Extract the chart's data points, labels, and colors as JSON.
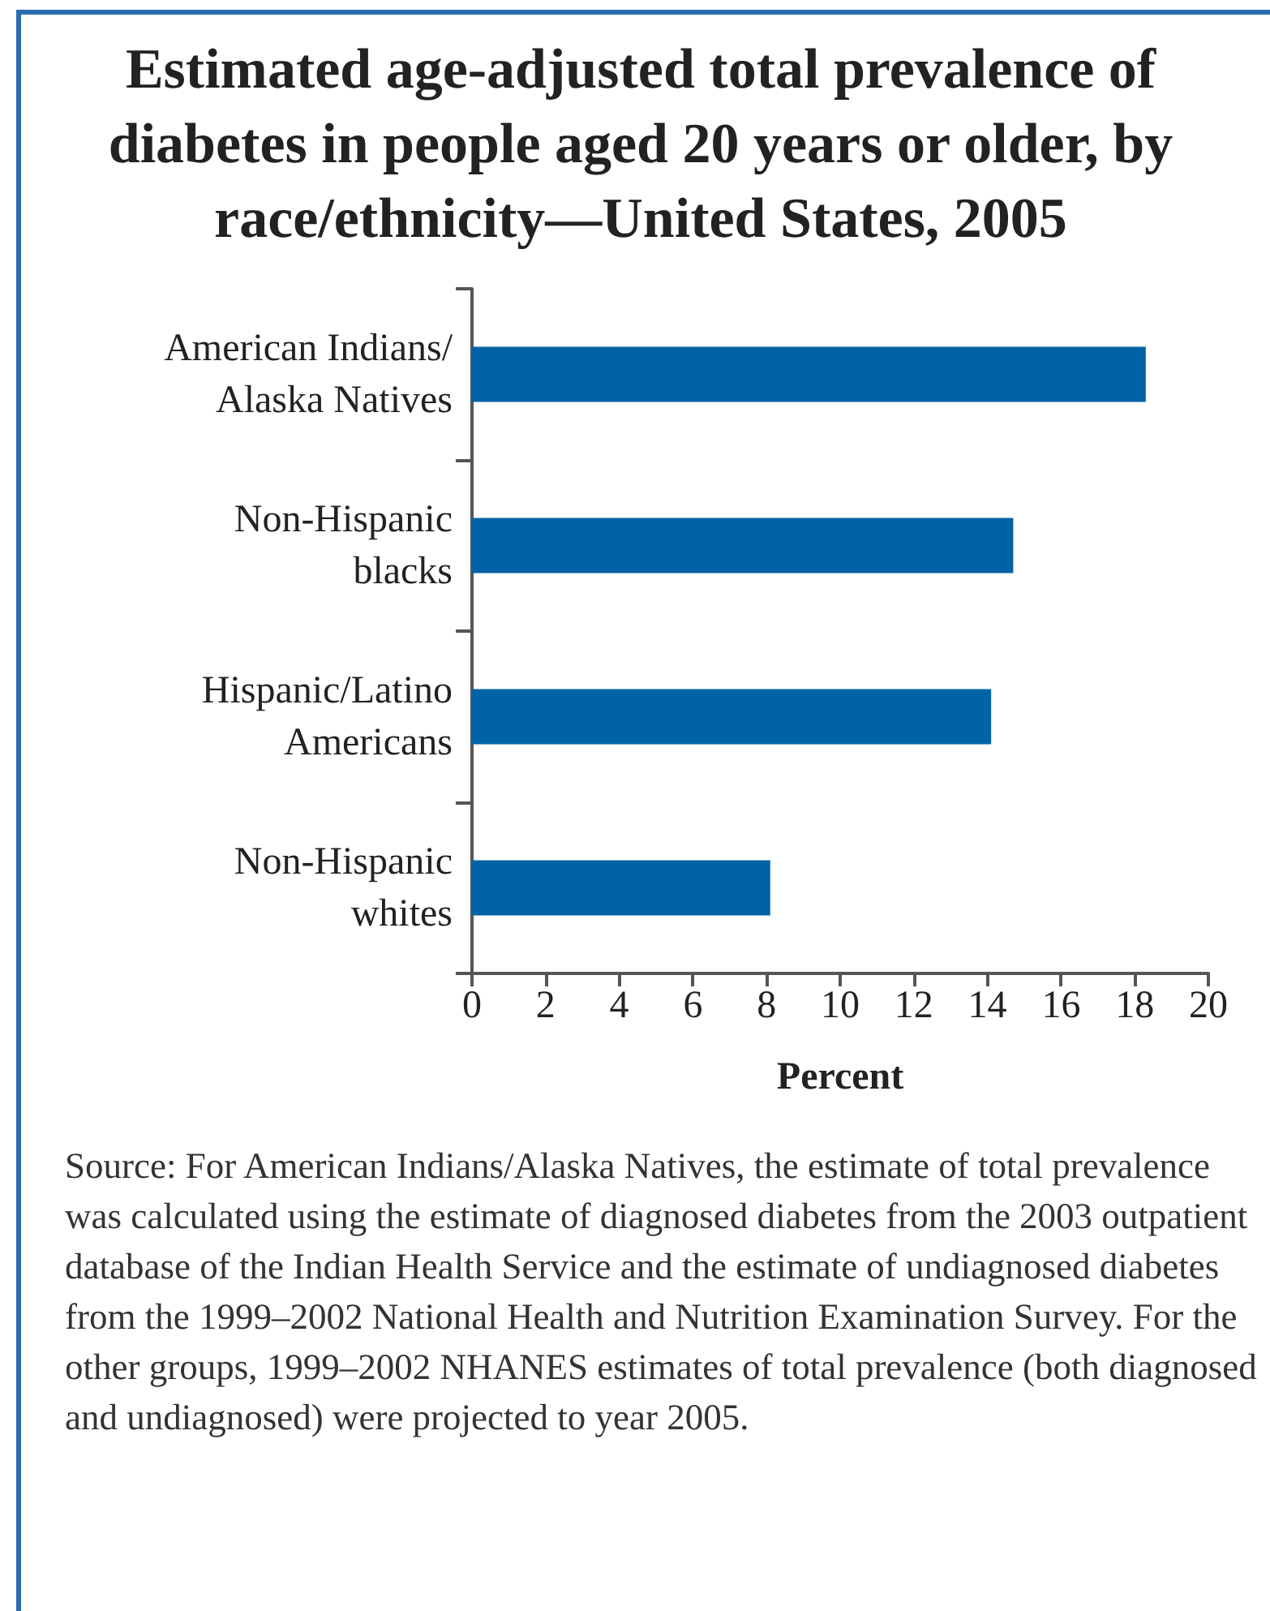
{
  "chart_data": {
    "type": "bar",
    "orientation": "horizontal",
    "title": "Estimated age-adjusted total prevalence of diabetes in people aged 20 years or older, by race/ethnicity—United States, 2005",
    "categories": [
      "American Indians/\nAlaska Natives",
      "Non-Hispanic\nblacks",
      "Hispanic/Latino\nAmericans",
      "Non-Hispanic\nwhites"
    ],
    "values": [
      18.3,
      14.7,
      14.1,
      8.1
    ],
    "color": "#0063a6",
    "xlabel": "Percent",
    "xlim": [
      0,
      20
    ],
    "xticks": [
      0,
      2,
      4,
      6,
      8,
      10,
      12,
      14,
      16,
      18,
      20
    ],
    "grid": false,
    "annotations": [
      "Source:  For American Indians/Alaska Natives, the estimate of total prevalence was calculated using the estimate of diagnosed diabetes from the 2003 outpatient database of the Indian Health Service and the estimate of undiagnosed diabetes from the 1999–2002 National Health and Nutrition Examination Survey.  For the other groups, 1999–2002 NHANES estimates of total prevalence (both diagnosed and undiagnosed) were projected to year 2005."
    ]
  }
}
